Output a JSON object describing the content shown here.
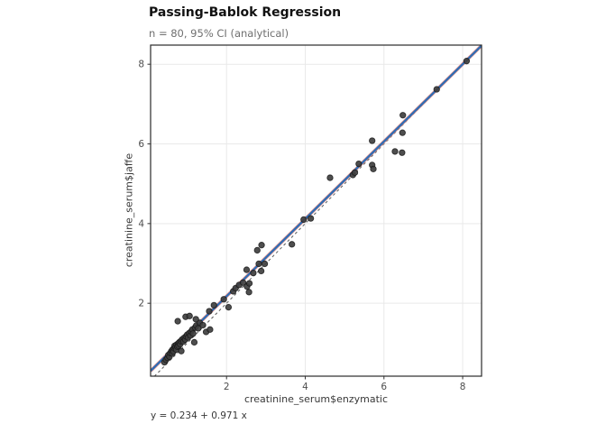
{
  "chart_data": {
    "type": "scatter",
    "title": "Passing-Bablok Regression",
    "subtitle": "n = 80, 95% CI (analytical)",
    "xlabel": "creatinine_serum$enzymatic",
    "ylabel": "creatinine_serum$jaffe",
    "n": 80,
    "xlim": [
      0.07,
      8.48
    ],
    "ylim": [
      0.17,
      8.48
    ],
    "x_ticks": [
      2,
      4,
      6,
      8
    ],
    "y_ticks": [
      2,
      4,
      6,
      8
    ],
    "grid": "major-only",
    "legend": "none",
    "regression": {
      "intercept": 0.234,
      "slope": 0.971,
      "equation": "y = 0.234 + 0.971 x",
      "ci_level": "95% CI (analytical)"
    },
    "identity_line": true,
    "points": [
      [
        0.42,
        0.52
      ],
      [
        0.46,
        0.58
      ],
      [
        0.5,
        0.63
      ],
      [
        0.52,
        0.7
      ],
      [
        0.55,
        0.66
      ],
      [
        0.57,
        0.75
      ],
      [
        0.6,
        0.8
      ],
      [
        0.62,
        0.74
      ],
      [
        0.63,
        0.84
      ],
      [
        0.65,
        0.79
      ],
      [
        0.67,
        0.87
      ],
      [
        0.68,
        0.93
      ],
      [
        0.7,
        0.89
      ],
      [
        0.72,
        0.84
      ],
      [
        0.73,
        0.96
      ],
      [
        0.75,
        0.91
      ],
      [
        0.77,
        0.99
      ],
      [
        0.78,
        0.93
      ],
      [
        0.8,
        1.02
      ],
      [
        0.82,
        0.97
      ],
      [
        0.84,
        1.05
      ],
      [
        0.85,
        0.8
      ],
      [
        0.87,
        1.09
      ],
      [
        0.9,
        1.04
      ],
      [
        0.92,
        1.13
      ],
      [
        0.95,
        1.09
      ],
      [
        0.97,
        1.17
      ],
      [
        1.0,
        1.21
      ],
      [
        1.02,
        1.14
      ],
      [
        1.05,
        1.25
      ],
      [
        1.08,
        1.19
      ],
      [
        1.1,
        1.29
      ],
      [
        1.13,
        1.34
      ],
      [
        1.15,
        1.24
      ],
      [
        1.18,
        1.02
      ],
      [
        1.2,
        1.39
      ],
      [
        1.23,
        1.44
      ],
      [
        1.28,
        1.37
      ],
      [
        1.32,
        1.51
      ],
      [
        0.76,
        1.55
      ],
      [
        0.96,
        1.66
      ],
      [
        1.06,
        1.68
      ],
      [
        1.22,
        1.6
      ],
      [
        1.4,
        1.45
      ],
      [
        1.48,
        1.28
      ],
      [
        1.58,
        1.34
      ],
      [
        1.56,
        1.8
      ],
      [
        1.68,
        1.95
      ],
      [
        1.93,
        2.1
      ],
      [
        2.05,
        1.9
      ],
      [
        2.17,
        2.3
      ],
      [
        2.23,
        2.38
      ],
      [
        2.32,
        2.46
      ],
      [
        2.42,
        2.52
      ],
      [
        2.52,
        2.42
      ],
      [
        2.58,
        2.5
      ],
      [
        2.57,
        2.28
      ],
      [
        2.51,
        2.84
      ],
      [
        2.68,
        2.76
      ],
      [
        2.82,
        2.99
      ],
      [
        2.88,
        2.81
      ],
      [
        2.97,
        2.99
      ],
      [
        2.78,
        3.33
      ],
      [
        2.89,
        3.46
      ],
      [
        3.66,
        3.48
      ],
      [
        3.96,
        4.1
      ],
      [
        4.14,
        4.13
      ],
      [
        4.63,
        5.15
      ],
      [
        5.21,
        5.22
      ],
      [
        5.26,
        5.28
      ],
      [
        5.36,
        5.5
      ],
      [
        5.7,
        6.08
      ],
      [
        5.7,
        5.47
      ],
      [
        5.73,
        5.37
      ],
      [
        6.28,
        5.81
      ],
      [
        6.46,
        5.78
      ],
      [
        6.47,
        6.28
      ],
      [
        6.48,
        6.72
      ],
      [
        7.34,
        7.37
      ],
      [
        8.1,
        8.08
      ]
    ]
  },
  "colors": {
    "fit_line": "#2e6db4",
    "ci_edge": "#e8837a",
    "identity_line": "#5c5c5c",
    "point_fill": "#3f3f3f",
    "point_stroke": "#161616",
    "grid": "#e9e9e9",
    "panel_border": "#2a2a2a",
    "tick_mark": "#333333",
    "tick_text": "#4d4d4d",
    "background": "#ffffff"
  }
}
